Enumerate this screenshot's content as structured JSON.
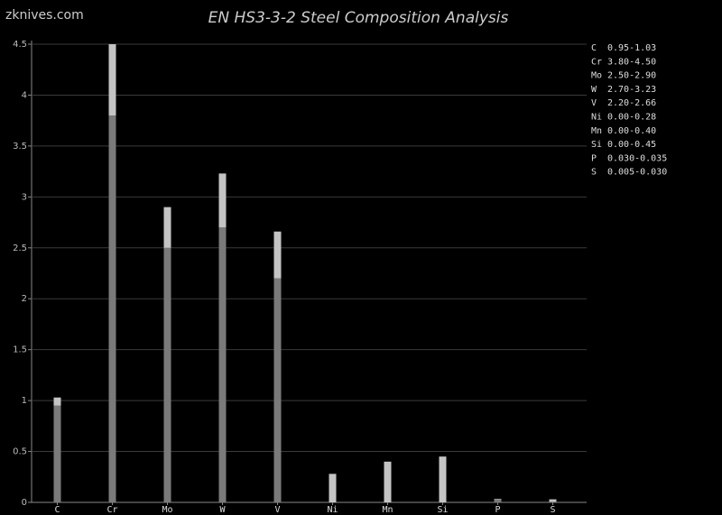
{
  "watermark": "zknives.com",
  "chart_data": {
    "type": "range-bar",
    "title": "EN HS3-3-2 Steel Composition Analysis",
    "categories": [
      "C",
      "Cr",
      "Mo",
      "W",
      "V",
      "Ni",
      "Mn",
      "Si",
      "P",
      "S"
    ],
    "low": [
      0.95,
      3.8,
      2.5,
      2.7,
      2.2,
      0,
      0,
      0,
      0.03,
      0.005
    ],
    "high": [
      1.03,
      4.5,
      2.9,
      3.23,
      2.66,
      0.28,
      0.4,
      0.45,
      0.035,
      0.03
    ],
    "low_color": "#7a7a7a",
    "high_color": "#c4c4c4",
    "ylim": [
      0,
      4.5
    ],
    "yticks": [
      0,
      0.5,
      1,
      1.5,
      2,
      2.5,
      3,
      3.5,
      4,
      4.5
    ],
    "grid": true,
    "legend": [
      "0.95-1.03",
      "3.80-4.50",
      "2.50-2.90",
      "2.70-3.23",
      "2.20-2.66",
      "0.00-0.28",
      "0.00-0.40",
      "0.00-0.45",
      "0.030-0.035",
      "0.005-0.030"
    ]
  }
}
